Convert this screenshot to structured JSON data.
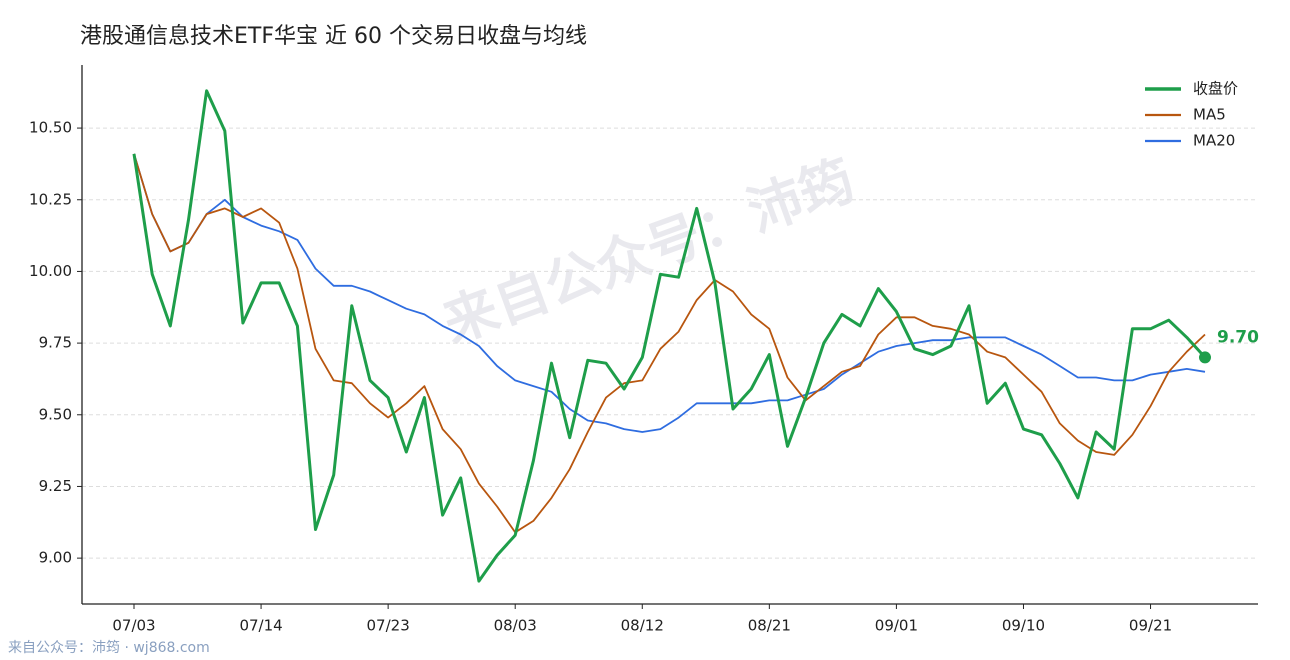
{
  "chart_data": {
    "type": "line",
    "title": "港股通信息技术ETF华宝 近 60 个交易日收盘与均线",
    "watermark": "来自公众号：沛筠",
    "footer": "来自公众号：沛筠 · wj868.com",
    "categories": [
      "07/03",
      null,
      null,
      null,
      null,
      null,
      null,
      "07/14",
      null,
      null,
      null,
      null,
      null,
      null,
      "07/23",
      null,
      null,
      null,
      null,
      null,
      null,
      "08/03",
      null,
      null,
      null,
      null,
      null,
      null,
      "08/12",
      null,
      null,
      null,
      null,
      null,
      null,
      "08/21",
      null,
      null,
      null,
      null,
      null,
      null,
      "09/01",
      null,
      null,
      null,
      null,
      null,
      null,
      "09/10",
      null,
      null,
      null,
      null,
      null,
      null,
      "09/21",
      null,
      null,
      null
    ],
    "series": [
      {
        "name": "收盘价",
        "color": "#1e9e4a",
        "width": 3,
        "values": [
          10.41,
          9.99,
          9.81,
          10.18,
          10.63,
          10.49,
          9.82,
          9.96,
          9.96,
          9.81,
          9.1,
          9.29,
          9.88,
          9.62,
          9.56,
          9.37,
          9.56,
          9.15,
          9.28,
          8.92,
          9.01,
          9.08,
          9.34,
          9.68,
          9.42,
          9.69,
          9.68,
          9.59,
          9.7,
          9.99,
          9.98,
          10.22,
          9.96,
          9.52,
          9.59,
          9.71,
          9.39,
          9.56,
          9.75,
          9.85,
          9.81,
          9.94,
          9.86,
          9.73,
          9.71,
          9.74,
          9.88,
          9.54,
          9.61,
          9.45,
          9.43,
          9.33,
          9.21,
          9.44,
          9.38,
          9.8,
          9.8,
          9.83,
          9.77,
          9.7
        ],
        "value_labels": [
          null,
          null,
          null,
          null,
          null,
          null,
          null,
          null,
          null,
          null,
          null,
          null,
          null,
          null,
          null,
          null,
          null,
          null,
          null,
          null,
          null,
          null,
          null,
          null,
          null,
          null,
          null,
          null,
          null,
          null,
          null,
          null,
          null,
          null,
          null,
          null,
          null,
          null,
          null,
          null,
          null,
          null,
          null,
          null,
          null,
          null,
          null,
          null,
          null,
          null,
          null,
          null,
          null,
          null,
          null,
          null,
          null,
          null,
          null,
          "9.70"
        ]
      },
      {
        "name": "MA5",
        "color": "#b8560f",
        "width": 1.8,
        "values": [
          10.41,
          10.2,
          10.07,
          10.1,
          10.2,
          10.22,
          10.19,
          10.22,
          10.17,
          10.01,
          9.73,
          9.62,
          9.61,
          9.54,
          9.49,
          9.54,
          9.6,
          9.45,
          9.38,
          9.26,
          9.18,
          9.09,
          9.13,
          9.21,
          9.31,
          9.44,
          9.56,
          9.61,
          9.62,
          9.73,
          9.79,
          9.9,
          9.97,
          9.93,
          9.85,
          9.8,
          9.63,
          9.55,
          9.6,
          9.65,
          9.67,
          9.78,
          9.84,
          9.84,
          9.81,
          9.8,
          9.78,
          9.72,
          9.7,
          9.64,
          9.58,
          9.47,
          9.41,
          9.37,
          9.36,
          9.43,
          9.53,
          9.65,
          9.72,
          9.78
        ]
      },
      {
        "name": "MA20",
        "color": "#2f6de0",
        "width": 1.8,
        "values": [
          10.41,
          10.2,
          10.07,
          10.1,
          10.2,
          10.25,
          10.19,
          10.16,
          10.14,
          10.11,
          10.01,
          9.95,
          9.95,
          9.93,
          9.9,
          9.87,
          9.85,
          9.81,
          9.78,
          9.74,
          9.67,
          9.62,
          9.6,
          9.58,
          9.52,
          9.48,
          9.47,
          9.45,
          9.44,
          9.45,
          9.49,
          9.54,
          9.54,
          9.54,
          9.54,
          9.55,
          9.55,
          9.57,
          9.59,
          9.64,
          9.68,
          9.72,
          9.74,
          9.75,
          9.76,
          9.76,
          9.77,
          9.77,
          9.77,
          9.74,
          9.71,
          9.67,
          9.63,
          9.63,
          9.62,
          9.62,
          9.64,
          9.65,
          9.66,
          9.65
        ]
      }
    ],
    "ylim": [
      8.84,
      10.72
    ],
    "yticks": [
      {
        "value": 9,
        "label": "9.00"
      },
      {
        "value": 9.25,
        "label": "9.25"
      },
      {
        "value": 9.5,
        "label": "9.50"
      },
      {
        "value": 9.75,
        "label": "9.75"
      },
      {
        "value": 10,
        "label": "10.00"
      },
      {
        "value": 10.25,
        "label": "10.25"
      },
      {
        "value": 10.5,
        "label": "10.50"
      }
    ],
    "grid": true,
    "legend": "upper right"
  }
}
